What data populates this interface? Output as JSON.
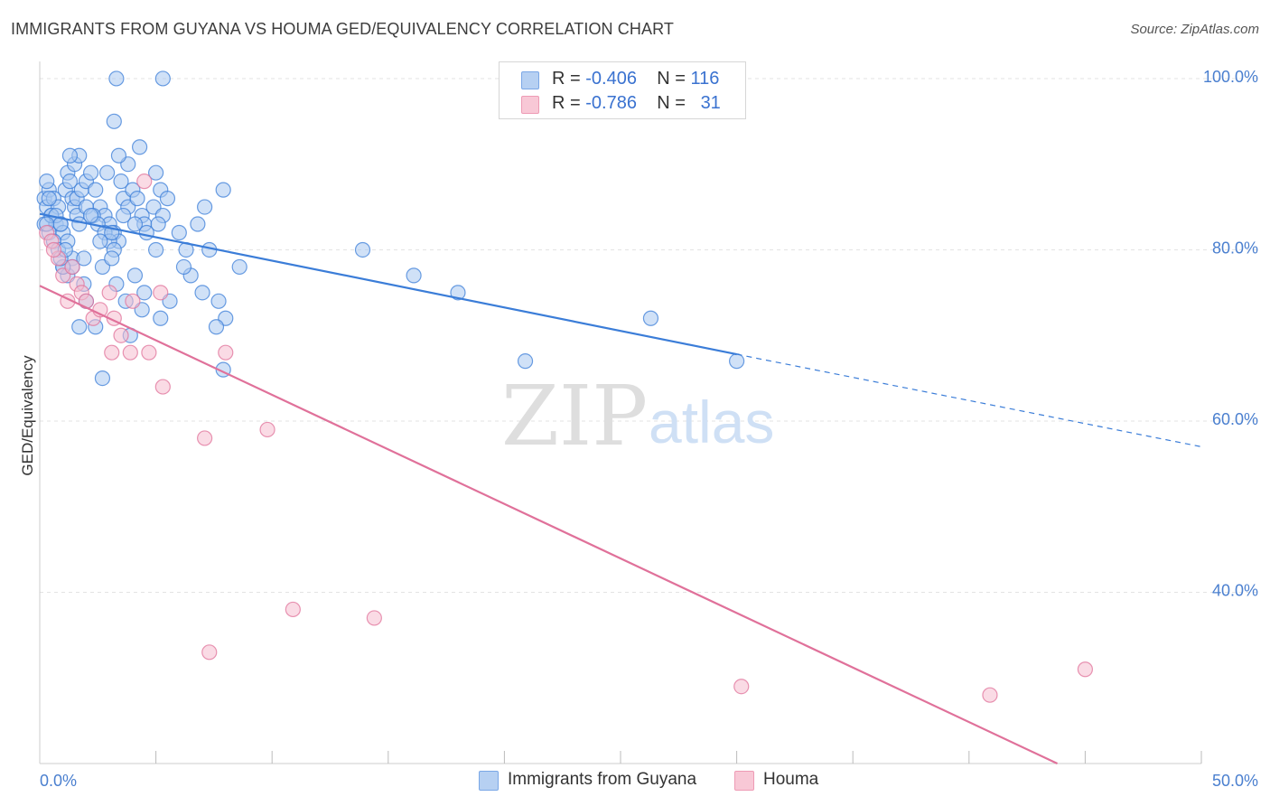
{
  "title": "IMMIGRANTS FROM GUYANA VS HOUMA GED/EQUIVALENCY CORRELATION CHART",
  "source": "Source: ZipAtlas.com",
  "watermark": {
    "zip": "ZIP",
    "atlas": "atlas"
  },
  "legend": {
    "blue": {
      "r_label": "R =",
      "r_value": "-0.406",
      "n_label": "N =",
      "n_value": "116"
    },
    "pink": {
      "r_label": "R =",
      "r_value": "-0.786",
      "n_label": "N =",
      "n_value": "31"
    }
  },
  "bottom_legend": {
    "blue": "Immigrants from Guyana",
    "pink": "Houma"
  },
  "colors": {
    "blue": "#3b7dd8",
    "blue_fill": "#a9c8f0",
    "pink": "#e0719a",
    "pink_fill": "#f6bed0",
    "grid": "#e3e3e3",
    "tick": "#4a7fcf"
  },
  "chart_data": {
    "type": "scatter",
    "title": "IMMIGRANTS FROM GUYANA VS HOUMA GED/EQUIVALENCY CORRELATION CHART",
    "xlabel": "",
    "ylabel": "GED/Equivalency",
    "xlim": [
      0,
      50
    ],
    "ylim": [
      20,
      102
    ],
    "x_tick_labels": [
      "0.0%",
      "50.0%"
    ],
    "y_ticks": [
      40,
      60,
      80,
      100
    ],
    "y_tick_labels": [
      "40.0%",
      "60.0%",
      "80.0%",
      "100.0%"
    ],
    "series": [
      {
        "name": "Immigrants from Guyana",
        "color": "blue",
        "trend": {
          "x0": 0,
          "y0": 84.2,
          "x1": 30,
          "y1": 67.8,
          "dash_to_x": 50,
          "dash_to_y": 57.0
        },
        "points": [
          [
            0.2,
            86
          ],
          [
            0.3,
            85
          ],
          [
            0.4,
            87
          ],
          [
            0.2,
            83
          ],
          [
            0.5,
            84
          ],
          [
            0.3,
            88
          ],
          [
            0.6,
            86
          ],
          [
            0.7,
            83
          ],
          [
            0.4,
            82
          ],
          [
            0.8,
            85
          ],
          [
            0.5,
            84
          ],
          [
            0.9,
            83
          ],
          [
            1.0,
            82
          ],
          [
            1.1,
            87
          ],
          [
            1.2,
            89
          ],
          [
            1.3,
            88
          ],
          [
            1.4,
            86
          ],
          [
            1.5,
            85
          ],
          [
            1.6,
            84
          ],
          [
            1.7,
            83
          ],
          [
            0.6,
            81
          ],
          [
            0.8,
            80
          ],
          [
            1.0,
            78
          ],
          [
            1.2,
            77
          ],
          [
            1.4,
            79
          ],
          [
            1.6,
            86
          ],
          [
            1.8,
            87
          ],
          [
            2.0,
            88
          ],
          [
            2.2,
            89
          ],
          [
            2.4,
            87
          ],
          [
            2.6,
            85
          ],
          [
            2.8,
            84
          ],
          [
            3.0,
            83
          ],
          [
            3.2,
            82
          ],
          [
            3.4,
            81
          ],
          [
            3.6,
            86
          ],
          [
            3.8,
            85
          ],
          [
            4.0,
            87
          ],
          [
            4.2,
            86
          ],
          [
            4.4,
            84
          ],
          [
            1.5,
            90
          ],
          [
            1.7,
            91
          ],
          [
            2.0,
            85
          ],
          [
            2.3,
            84
          ],
          [
            2.5,
            83
          ],
          [
            2.8,
            82
          ],
          [
            3.0,
            81
          ],
          [
            3.2,
            80
          ],
          [
            3.5,
            88
          ],
          [
            3.8,
            90
          ],
          [
            1.3,
            91
          ],
          [
            3.4,
            91
          ],
          [
            2.9,
            89
          ],
          [
            4.3,
            92
          ],
          [
            5.2,
            87
          ],
          [
            5.5,
            86
          ],
          [
            5.0,
            89
          ],
          [
            6.0,
            82
          ],
          [
            6.3,
            80
          ],
          [
            6.8,
            83
          ],
          [
            7.1,
            85
          ],
          [
            7.9,
            87
          ],
          [
            7.3,
            80
          ],
          [
            4.9,
            85
          ],
          [
            5.3,
            84
          ],
          [
            4.5,
            83
          ],
          [
            5.1,
            83
          ],
          [
            2.7,
            78
          ],
          [
            3.1,
            79
          ],
          [
            3.3,
            76
          ],
          [
            3.7,
            74
          ],
          [
            4.1,
            77
          ],
          [
            4.5,
            75
          ],
          [
            4.4,
            73
          ],
          [
            5.2,
            72
          ],
          [
            5.6,
            74
          ],
          [
            6.5,
            77
          ],
          [
            7.0,
            75
          ],
          [
            7.7,
            74
          ],
          [
            8.0,
            72
          ],
          [
            7.6,
            71
          ],
          [
            7.9,
            66
          ],
          [
            3.9,
            70
          ],
          [
            2.4,
            71
          ],
          [
            1.7,
            71
          ],
          [
            2.7,
            65
          ],
          [
            1.9,
            76
          ],
          [
            1.4,
            78
          ],
          [
            1.0,
            78
          ],
          [
            1.2,
            81
          ],
          [
            2.0,
            74
          ],
          [
            0.9,
            79
          ],
          [
            8.6,
            78
          ],
          [
            6.2,
            78
          ],
          [
            13.9,
            80
          ],
          [
            16.1,
            77
          ],
          [
            18.0,
            75
          ],
          [
            26.3,
            72
          ],
          [
            20.9,
            67
          ],
          [
            30.0,
            67
          ],
          [
            3.3,
            100
          ],
          [
            5.3,
            100
          ],
          [
            3.2,
            95
          ],
          [
            0.4,
            86
          ],
          [
            0.7,
            84
          ],
          [
            0.3,
            83
          ],
          [
            0.9,
            83
          ],
          [
            1.1,
            80
          ],
          [
            1.9,
            79
          ],
          [
            2.6,
            81
          ],
          [
            3.1,
            82
          ],
          [
            3.6,
            84
          ],
          [
            4.1,
            83
          ],
          [
            4.6,
            82
          ],
          [
            5.0,
            80
          ],
          [
            2.2,
            84
          ]
        ]
      },
      {
        "name": "Houma",
        "color": "pink",
        "trend": {
          "x0": 0,
          "y0": 75.8,
          "x1": 43.8,
          "y1": 20.0
        },
        "points": [
          [
            0.3,
            82
          ],
          [
            0.5,
            81
          ],
          [
            0.8,
            79
          ],
          [
            1.0,
            77
          ],
          [
            1.2,
            74
          ],
          [
            1.4,
            78
          ],
          [
            1.6,
            76
          ],
          [
            1.8,
            75
          ],
          [
            2.0,
            74
          ],
          [
            2.3,
            72
          ],
          [
            2.6,
            73
          ],
          [
            3.0,
            75
          ],
          [
            3.2,
            72
          ],
          [
            3.5,
            70
          ],
          [
            4.0,
            74
          ],
          [
            3.9,
            68
          ],
          [
            3.1,
            68
          ],
          [
            4.7,
            68
          ],
          [
            5.2,
            75
          ],
          [
            4.5,
            88
          ],
          [
            5.3,
            64
          ],
          [
            7.1,
            58
          ],
          [
            8.0,
            68
          ],
          [
            9.8,
            59
          ],
          [
            10.9,
            38
          ],
          [
            14.4,
            37
          ],
          [
            7.3,
            33
          ],
          [
            30.2,
            29
          ],
          [
            40.9,
            28
          ],
          [
            45.0,
            31
          ],
          [
            0.6,
            80
          ]
        ]
      }
    ]
  }
}
